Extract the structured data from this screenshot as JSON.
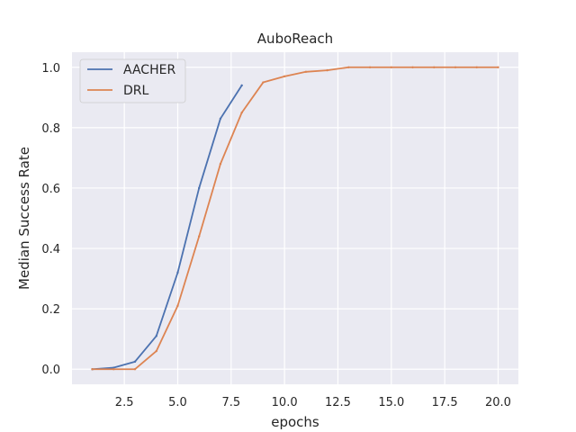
{
  "chart_data": {
    "type": "line",
    "title": "AuboReach",
    "xlabel": "epochs",
    "ylabel": "Median Success Rate",
    "xlim": [
      0.05,
      20.95
    ],
    "ylim": [
      -0.05,
      1.05
    ],
    "xticks": [
      2.5,
      5.0,
      7.5,
      10.0,
      12.5,
      15.0,
      17.5,
      20.0
    ],
    "xtick_labels": [
      "2.5",
      "5.0",
      "7.5",
      "10.0",
      "12.5",
      "15.0",
      "17.5",
      "20.0"
    ],
    "yticks": [
      0.0,
      0.2,
      0.4,
      0.6,
      0.8,
      1.0
    ],
    "ytick_labels": [
      "0.0",
      "0.2",
      "0.4",
      "0.6",
      "0.8",
      "1.0"
    ],
    "grid": true,
    "legend_position": "top-left",
    "series": [
      {
        "name": "AACHER",
        "color": "#4c72b0",
        "x": [
          1,
          2,
          3,
          4,
          5,
          6,
          7,
          8
        ],
        "y": [
          0.0,
          0.005,
          0.025,
          0.11,
          0.32,
          0.6,
          0.83,
          0.94
        ]
      },
      {
        "name": "DRL",
        "color": "#dd8452",
        "x": [
          1,
          2,
          3,
          4,
          5,
          6,
          7,
          8,
          9,
          10,
          11,
          12,
          13,
          14,
          15,
          16,
          17,
          18,
          19,
          20
        ],
        "y": [
          0.0,
          0.0,
          0.0,
          0.06,
          0.21,
          0.44,
          0.68,
          0.85,
          0.95,
          0.97,
          0.985,
          0.99,
          1.0,
          1.0,
          1.0,
          1.0,
          1.0,
          1.0,
          1.0,
          1.0
        ]
      }
    ]
  }
}
